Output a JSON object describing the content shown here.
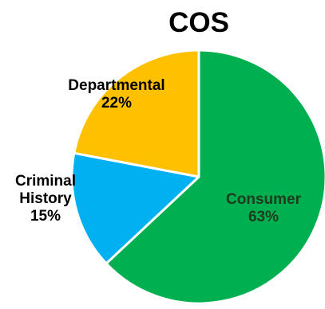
{
  "chart_data": {
    "type": "pie",
    "title": "COS",
    "start_angle_deg": 0,
    "direction": "clockwise",
    "slices": [
      {
        "label": [
          "Consumer",
          "63%"
        ],
        "value": 63,
        "color": "#00b050",
        "label_color": "#1f3b1f"
      },
      {
        "label": [
          "Criminal",
          "History",
          "15%"
        ],
        "value": 15,
        "color": "#00b0f0",
        "label_color": "#000000"
      },
      {
        "label": [
          "Departmental",
          "22%"
        ],
        "value": 22,
        "color": "#ffc000",
        "label_color": "#000000"
      }
    ]
  }
}
